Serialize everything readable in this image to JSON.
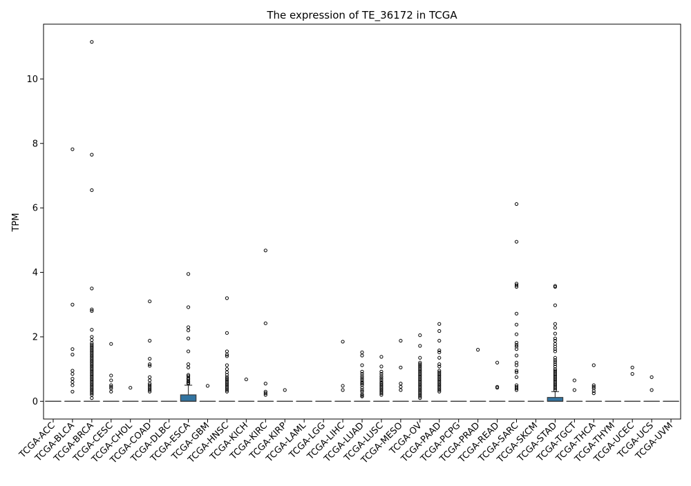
{
  "chart_data": {
    "type": "box",
    "title": "The expression of TE_36172 in TCGA",
    "xlabel": "",
    "ylabel": "TPM",
    "ylim": [
      -0.55,
      11.7
    ],
    "yticks": [
      0,
      2,
      4,
      6,
      8,
      10
    ],
    "grid": false,
    "box_color": "#3274a1",
    "categories": [
      "TCGA-ACC",
      "TCGA-BLCA",
      "TCGA-BRCA",
      "TCGA-CESC",
      "TCGA-CHOL",
      "TCGA-COAD",
      "TCGA-DLBC",
      "TCGA-ESCA",
      "TCGA-GBM",
      "TCGA-HNSC",
      "TCGA-KICH",
      "TCGA-KIRC",
      "TCGA-KIRP",
      "TCGA-LAML",
      "TCGA-LGG",
      "TCGA-LIHC",
      "TCGA-LUAD",
      "TCGA-LUSC",
      "TCGA-MESO",
      "TCGA-OV",
      "TCGA-PAAD",
      "TCGA-PCPG",
      "TCGA-PRAD",
      "TCGA-READ",
      "TCGA-SARC",
      "TCGA-SKCM",
      "TCGA-STAD",
      "TCGA-TGCT",
      "TCGA-THCA",
      "TCGA-THYM",
      "TCGA-UCEC",
      "TCGA-UCS",
      "TCGA-UVM"
    ],
    "boxes": [
      {
        "q1": 0,
        "median": 0,
        "q3": 0,
        "whisker_low": 0,
        "whisker_high": 0,
        "outliers": []
      },
      {
        "q1": 0,
        "median": 0,
        "q3": 0,
        "whisker_low": 0,
        "whisker_high": 0,
        "outliers": [
          7.82,
          3.0,
          1.62,
          1.45,
          0.95,
          0.85,
          0.7,
          0.6,
          0.5,
          0.3
        ]
      },
      {
        "q1": 0,
        "median": 0,
        "q3": 0,
        "whisker_low": 0,
        "whisker_high": 0,
        "outliers": [
          11.15,
          7.65,
          6.55,
          3.5,
          2.85,
          2.8,
          2.22,
          2.0,
          1.9,
          1.8,
          1.75,
          1.7,
          1.65,
          1.6,
          1.55,
          1.5,
          1.45,
          1.4,
          1.35,
          1.3,
          1.25,
          1.2,
          1.15,
          1.1,
          1.05,
          1.0,
          0.95,
          0.9,
          0.85,
          0.8,
          0.75,
          0.7,
          0.65,
          0.6,
          0.55,
          0.5,
          0.45,
          0.4,
          0.35,
          0.3,
          0.25,
          0.2,
          0.1
        ]
      },
      {
        "q1": 0,
        "median": 0,
        "q3": 0,
        "whisker_low": 0,
        "whisker_high": 0,
        "outliers": [
          1.78,
          0.8,
          0.65,
          0.5,
          0.45,
          0.4,
          0.3
        ]
      },
      {
        "q1": 0,
        "median": 0,
        "q3": 0,
        "whisker_low": 0,
        "whisker_high": 0,
        "outliers": [
          0.42
        ]
      },
      {
        "q1": 0,
        "median": 0,
        "q3": 0,
        "whisker_low": 0,
        "whisker_high": 0,
        "outliers": [
          3.1,
          1.88,
          1.32,
          1.15,
          1.1,
          0.75,
          0.65,
          0.55,
          0.5,
          0.45,
          0.4,
          0.35,
          0.3
        ]
      },
      {
        "q1": 0,
        "median": 0,
        "q3": 0,
        "whisker_low": 0,
        "whisker_high": 0,
        "outliers": []
      },
      {
        "q1": 0,
        "median": 0,
        "q3": 0.2,
        "whisker_low": 0,
        "whisker_high": 0.5,
        "outliers": [
          3.95,
          2.92,
          2.3,
          2.2,
          1.95,
          1.55,
          1.15,
          1.05,
          0.82,
          0.78,
          0.72,
          0.68,
          0.62,
          0.58,
          0.55
        ]
      },
      {
        "q1": 0,
        "median": 0,
        "q3": 0,
        "whisker_low": 0,
        "whisker_high": 0,
        "outliers": [
          0.48
        ]
      },
      {
        "q1": 0,
        "median": 0,
        "q3": 0,
        "whisker_low": 0,
        "whisker_high": 0,
        "outliers": [
          3.2,
          2.12,
          1.55,
          1.45,
          1.4,
          1.12,
          1.0,
          0.9,
          0.82,
          0.75,
          0.7,
          0.65,
          0.6,
          0.55,
          0.5,
          0.45,
          0.4,
          0.35,
          0.3
        ]
      },
      {
        "q1": 0,
        "median": 0,
        "q3": 0,
        "whisker_low": 0,
        "whisker_high": 0,
        "outliers": [
          0.68
        ]
      },
      {
        "q1": 0,
        "median": 0,
        "q3": 0,
        "whisker_low": 0,
        "whisker_high": 0,
        "outliers": [
          4.68,
          2.42,
          0.55,
          0.3,
          0.25,
          0.2
        ]
      },
      {
        "q1": 0,
        "median": 0,
        "q3": 0,
        "whisker_low": 0,
        "whisker_high": 0,
        "outliers": [
          0.35
        ]
      },
      {
        "q1": 0,
        "median": 0,
        "q3": 0,
        "whisker_low": 0,
        "whisker_high": 0,
        "outliers": []
      },
      {
        "q1": 0,
        "median": 0,
        "q3": 0,
        "whisker_low": 0,
        "whisker_high": 0,
        "outliers": []
      },
      {
        "q1": 0,
        "median": 0,
        "q3": 0,
        "whisker_low": 0,
        "whisker_high": 0,
        "outliers": [
          1.85,
          0.48,
          0.35
        ]
      },
      {
        "q1": 0,
        "median": 0,
        "q3": 0,
        "whisker_low": 0,
        "whisker_high": 0,
        "outliers": [
          1.52,
          1.42,
          1.12,
          0.92,
          0.85,
          0.78,
          0.72,
          0.66,
          0.6,
          0.55,
          0.5,
          0.42,
          0.35,
          0.3,
          0.22,
          0.18,
          0.15
        ]
      },
      {
        "q1": 0,
        "median": 0,
        "q3": 0,
        "whisker_low": 0,
        "whisker_high": 0,
        "outliers": [
          1.38,
          1.08,
          0.92,
          0.85,
          0.78,
          0.72,
          0.66,
          0.6,
          0.55,
          0.5,
          0.45,
          0.4,
          0.35,
          0.3,
          0.25,
          0.2
        ]
      },
      {
        "q1": 0,
        "median": 0,
        "q3": 0,
        "whisker_low": 0,
        "whisker_high": 0,
        "outliers": [
          1.88,
          1.05,
          0.55,
          0.45,
          0.35
        ]
      },
      {
        "q1": 0,
        "median": 0,
        "q3": 0,
        "whisker_low": 0,
        "whisker_high": 0,
        "outliers": [
          2.05,
          1.72,
          1.35,
          1.2,
          1.15,
          1.1,
          1.05,
          1.0,
          0.95,
          0.9,
          0.85,
          0.8,
          0.75,
          0.7,
          0.65,
          0.6,
          0.55,
          0.5,
          0.45,
          0.4,
          0.35,
          0.3,
          0.25,
          0.2,
          0.15,
          0.1
        ]
      },
      {
        "q1": 0,
        "median": 0,
        "q3": 0,
        "whisker_low": 0,
        "whisker_high": 0,
        "outliers": [
          2.4,
          2.18,
          1.88,
          1.58,
          1.52,
          1.35,
          1.15,
          1.08,
          0.95,
          0.9,
          0.85,
          0.8,
          0.75,
          0.7,
          0.65,
          0.6,
          0.55,
          0.5,
          0.45,
          0.4,
          0.35,
          0.3
        ]
      },
      {
        "q1": 0,
        "median": 0,
        "q3": 0,
        "whisker_low": 0,
        "whisker_high": 0,
        "outliers": []
      },
      {
        "q1": 0,
        "median": 0,
        "q3": 0,
        "whisker_low": 0,
        "whisker_high": 0,
        "outliers": [
          1.6
        ]
      },
      {
        "q1": 0,
        "median": 0,
        "q3": 0,
        "whisker_low": 0,
        "whisker_high": 0,
        "outliers": [
          1.2,
          0.45,
          0.42
        ]
      },
      {
        "q1": 0,
        "median": 0,
        "q3": 0,
        "whisker_low": 0,
        "whisker_high": 0,
        "outliers": [
          6.12,
          4.95,
          3.65,
          3.6,
          3.55,
          2.72,
          2.38,
          2.08,
          1.82,
          1.75,
          1.7,
          1.62,
          1.42,
          1.2,
          1.12,
          0.95,
          0.9,
          0.75,
          0.5,
          0.45,
          0.4,
          0.35
        ]
      },
      {
        "q1": 0,
        "median": 0,
        "q3": 0,
        "whisker_low": 0,
        "whisker_high": 0,
        "outliers": []
      },
      {
        "q1": 0,
        "median": 0,
        "q3": 0.12,
        "whisker_low": 0,
        "whisker_high": 0.3,
        "outliers": [
          3.58,
          3.55,
          2.98,
          2.4,
          2.28,
          2.1,
          1.95,
          1.88,
          1.78,
          1.7,
          1.62,
          1.55,
          1.35,
          1.28,
          1.22,
          1.15,
          1.08,
          1.0,
          0.95,
          0.9,
          0.85,
          0.8,
          0.75,
          0.7,
          0.65,
          0.6,
          0.55,
          0.5,
          0.45,
          0.4,
          0.35
        ]
      },
      {
        "q1": 0,
        "median": 0,
        "q3": 0,
        "whisker_low": 0,
        "whisker_high": 0,
        "outliers": [
          0.65,
          0.35
        ]
      },
      {
        "q1": 0,
        "median": 0,
        "q3": 0,
        "whisker_low": 0,
        "whisker_high": 0,
        "outliers": [
          1.12,
          0.5,
          0.45,
          0.4,
          0.32,
          0.25
        ]
      },
      {
        "q1": 0,
        "median": 0,
        "q3": 0,
        "whisker_low": 0,
        "whisker_high": 0,
        "outliers": []
      },
      {
        "q1": 0,
        "median": 0,
        "q3": 0,
        "whisker_low": 0,
        "whisker_high": 0,
        "outliers": [
          1.05,
          0.85
        ]
      },
      {
        "q1": 0,
        "median": 0,
        "q3": 0,
        "whisker_low": 0,
        "whisker_high": 0,
        "outliers": [
          0.75,
          0.35
        ]
      },
      {
        "q1": 0,
        "median": 0,
        "q3": 0,
        "whisker_low": 0,
        "whisker_high": 0,
        "outliers": []
      }
    ]
  }
}
